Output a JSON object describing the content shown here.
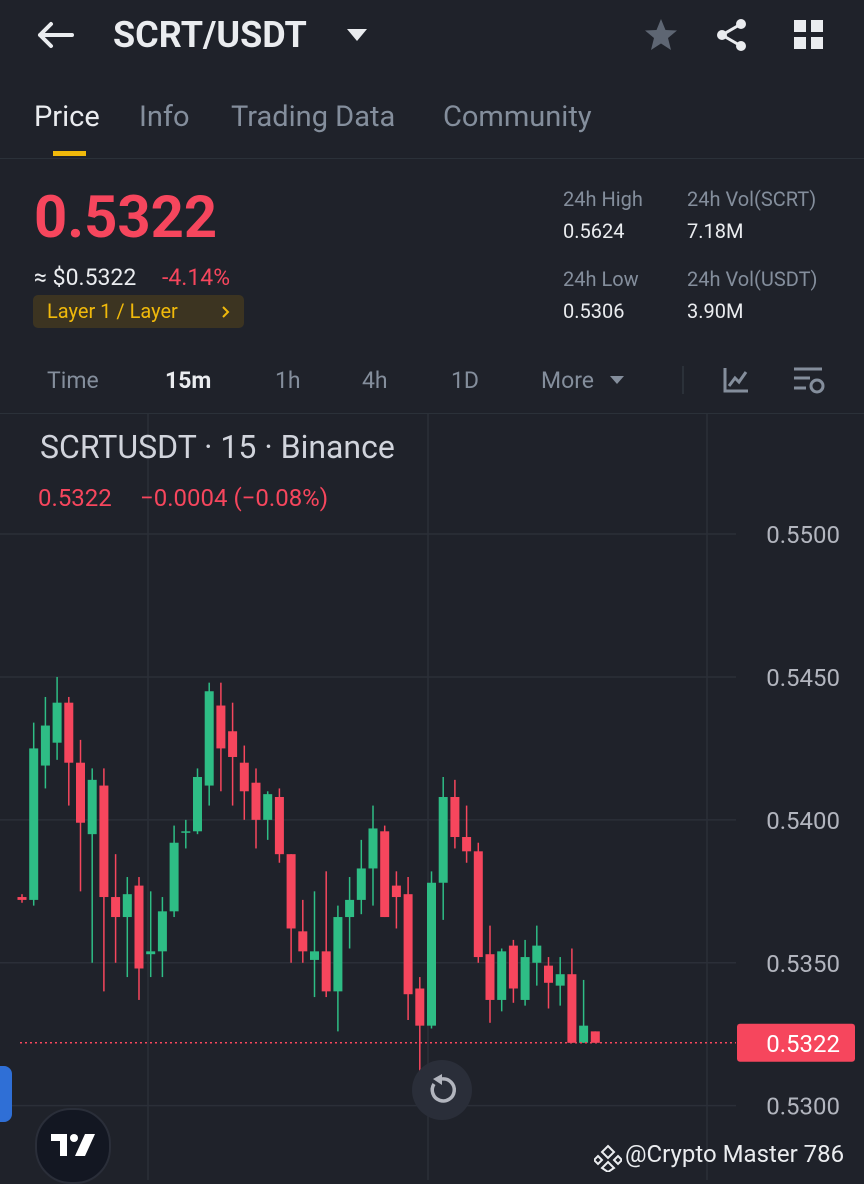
{
  "header": {
    "pair": "SCRT/USDT"
  },
  "tabs": [
    "Price",
    "Info",
    "Trading Data",
    "Community"
  ],
  "ticker": {
    "price": "0.5322",
    "fiat": "≈ $0.5322",
    "change": "-4.14%",
    "tag": "Layer 1 / Layer",
    "high_label": "24h High",
    "high": "0.5624",
    "low_label": "24h Low",
    "low": "0.5306",
    "vol_base_label": "24h Vol(SCRT)",
    "vol_base": "7.18M",
    "vol_quote_label": "24h Vol(USDT)",
    "vol_quote": "3.90M"
  },
  "timeframes": [
    "Time",
    "15m",
    "1h",
    "4h",
    "1D",
    "More"
  ],
  "legend": {
    "title": "SCRTUSDT · 15 · Binance",
    "last": "0.5322",
    "change": "−0.0004 (−0.08%)"
  },
  "watermark": "@Crypto Master 786",
  "chart_data": {
    "type": "candlestick",
    "up_color": "#2ebd85",
    "down_color": "#f6465d",
    "open": [
      0.5373,
      0.5372,
      0.5419,
      0.5427,
      0.5441,
      0.542,
      0.5395,
      0.5412,
      0.5373,
      0.5366,
      0.5377,
      0.5353,
      0.5354,
      0.5368,
      0.5396,
      0.5396,
      0.5412,
      0.544,
      0.5431,
      0.542,
      0.5413,
      0.54,
      0.5408,
      0.5388,
      0.5361,
      0.5351,
      0.5354,
      0.534,
      0.5366,
      0.5372,
      0.5383,
      0.5396,
      0.5377,
      0.5374,
      0.5341,
      0.5328,
      0.5378,
      0.5408,
      0.5394,
      0.5389,
      0.5353,
      0.5337,
      0.5356,
      0.5337,
      0.535,
      0.5349,
      0.5342,
      0.5346,
      0.5322,
      0.5326
    ],
    "high": [
      0.5374,
      0.5434,
      0.5443,
      0.545,
      0.5443,
      0.5428,
      0.5418,
      0.5418,
      0.5388,
      0.538,
      0.538,
      0.5375,
      0.5373,
      0.5398,
      0.54,
      0.5418,
      0.5448,
      0.5448,
      0.5441,
      0.5426,
      0.5418,
      0.541,
      0.5411,
      0.5388,
      0.5372,
      0.5375,
      0.5382,
      0.537,
      0.538,
      0.5393,
      0.5405,
      0.5398,
      0.5382,
      0.538,
      0.5345,
      0.5382,
      0.5415,
      0.5414,
      0.5405,
      0.5392,
      0.5363,
      0.5355,
      0.5358,
      0.5358,
      0.5363,
      0.5352,
      0.5352,
      0.5355,
      0.5344,
      0.5326
    ],
    "low": [
      0.5371,
      0.537,
      0.5411,
      0.5421,
      0.5405,
      0.5375,
      0.535,
      0.534,
      0.535,
      0.5345,
      0.5337,
      0.5345,
      0.5345,
      0.5366,
      0.539,
      0.5395,
      0.5405,
      0.541,
      0.5405,
      0.54,
      0.539,
      0.5393,
      0.5385,
      0.535,
      0.535,
      0.5338,
      0.5338,
      0.5326,
      0.5355,
      0.5367,
      0.537,
      0.5366,
      0.5362,
      0.533,
      0.5312,
      0.5327,
      0.5365,
      0.539,
      0.5385,
      0.535,
      0.5329,
      0.5333,
      0.5336,
      0.5335,
      0.5342,
      0.5334,
      0.5335,
      0.5322,
      0.5322,
      0.5322
    ],
    "close": [
      0.5372,
      0.5425,
      0.5433,
      0.5441,
      0.542,
      0.5399,
      0.5414,
      0.5373,
      0.5366,
      0.5374,
      0.5348,
      0.5354,
      0.5368,
      0.5392,
      0.5396,
      0.5415,
      0.5445,
      0.5425,
      0.5422,
      0.541,
      0.54,
      0.5409,
      0.5388,
      0.5362,
      0.5354,
      0.5354,
      0.534,
      0.5366,
      0.5372,
      0.5383,
      0.5397,
      0.5366,
      0.5373,
      0.5339,
      0.5328,
      0.5378,
      0.5408,
      0.5394,
      0.5389,
      0.5352,
      0.5337,
      0.5354,
      0.5341,
      0.5352,
      0.5356,
      0.5343,
      0.5346,
      0.5322,
      0.5328,
      0.5322
    ],
    "ylim": [
      0.5274,
      0.5542
    ],
    "yticks": [
      {
        "value": 0.55,
        "label": "0.5500"
      },
      {
        "value": 0.545,
        "label": "0.5450"
      },
      {
        "value": 0.54,
        "label": "0.5400"
      },
      {
        "value": 0.535,
        "label": "0.5350"
      },
      {
        "value": 0.53,
        "label": "0.5300"
      }
    ],
    "grid": true,
    "last_price": 0.5322
  }
}
